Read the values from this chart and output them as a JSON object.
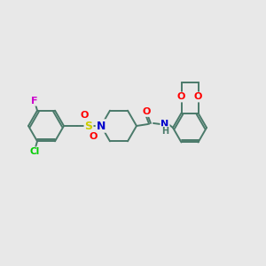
{
  "background_color": "#e8e8e8",
  "bond_color": "#4a7a6a",
  "atom_colors": {
    "N": "#0000cc",
    "O": "#ff0000",
    "S": "#cccc00",
    "Cl": "#00cc00",
    "F": "#cc00cc",
    "H": "#4a7a6a",
    "C": "#4a7a6a"
  },
  "figsize": [
    3.0,
    3.0
  ],
  "dpi": 100
}
